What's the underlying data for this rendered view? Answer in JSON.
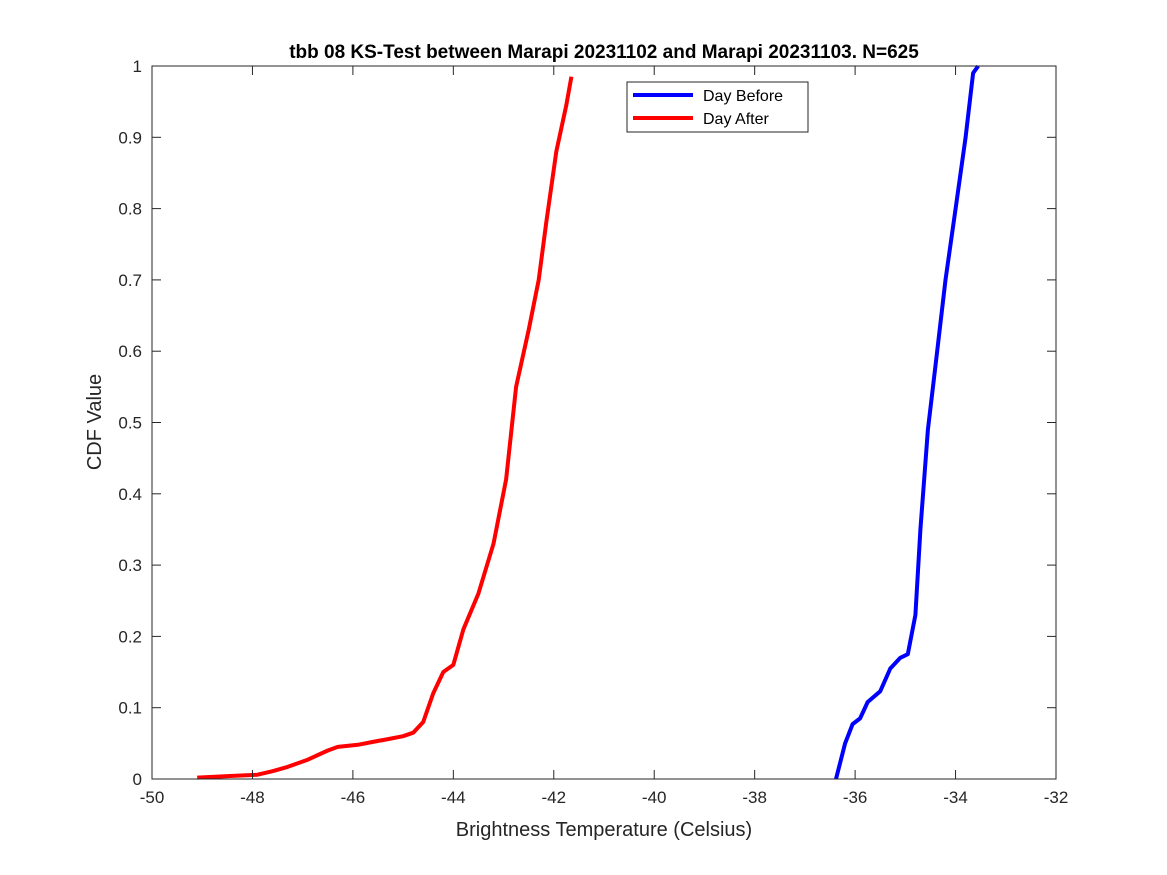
{
  "chart_data": {
    "type": "line",
    "title": "tbb 08 KS-Test between Marapi 20231102 and Marapi 20231103. N=625",
    "xlabel": "Brightness Temperature (Celsius)",
    "ylabel": "CDF Value",
    "xlim": [
      -50,
      -32
    ],
    "ylim": [
      0,
      1
    ],
    "xticks": [
      -50,
      -48,
      -46,
      -44,
      -42,
      -40,
      -38,
      -36,
      -34,
      -32
    ],
    "yticks": [
      0,
      0.1,
      0.2,
      0.3,
      0.4,
      0.5,
      0.6,
      0.7,
      0.8,
      0.9,
      1
    ],
    "xtick_labels": [
      "-50",
      "-48",
      "-46",
      "-44",
      "-42",
      "-40",
      "-38",
      "-36",
      "-34",
      "-32"
    ],
    "ytick_labels": [
      "0",
      "0.1",
      "0.2",
      "0.3",
      "0.4",
      "0.5",
      "0.6",
      "0.7",
      "0.8",
      "0.9",
      "1"
    ],
    "grid": false,
    "legend_position": "top-center",
    "series": [
      {
        "name": "Day Before",
        "color": "#0000ff",
        "x": [
          -36.38,
          -36.2,
          -36.05,
          -35.9,
          -35.75,
          -35.5,
          -35.3,
          -35.1,
          -34.95,
          -34.8,
          -34.7,
          -34.55,
          -34.4,
          -34.2,
          -34.0,
          -33.8,
          -33.65,
          -33.55
        ],
        "y": [
          0.0,
          0.05,
          0.077,
          0.085,
          0.108,
          0.123,
          0.155,
          0.17,
          0.175,
          0.23,
          0.35,
          0.49,
          0.58,
          0.7,
          0.8,
          0.9,
          0.99,
          1.0
        ]
      },
      {
        "name": "Day After",
        "color": "#ff0000",
        "x": [
          -49.1,
          -48.5,
          -47.9,
          -47.6,
          -47.3,
          -46.9,
          -46.5,
          -46.3,
          -45.9,
          -45.6,
          -45.3,
          -45.0,
          -44.8,
          -44.6,
          -44.4,
          -44.2,
          -44.0,
          -43.8,
          -43.5,
          -43.2,
          -42.95,
          -42.75,
          -42.5,
          -42.3,
          -42.15,
          -41.95,
          -41.75,
          -41.65
        ],
        "y": [
          0.002,
          0.004,
          0.006,
          0.011,
          0.017,
          0.027,
          0.04,
          0.045,
          0.048,
          0.052,
          0.056,
          0.06,
          0.065,
          0.08,
          0.12,
          0.15,
          0.16,
          0.21,
          0.26,
          0.33,
          0.42,
          0.55,
          0.63,
          0.7,
          0.78,
          0.88,
          0.945,
          0.985
        ]
      }
    ]
  }
}
